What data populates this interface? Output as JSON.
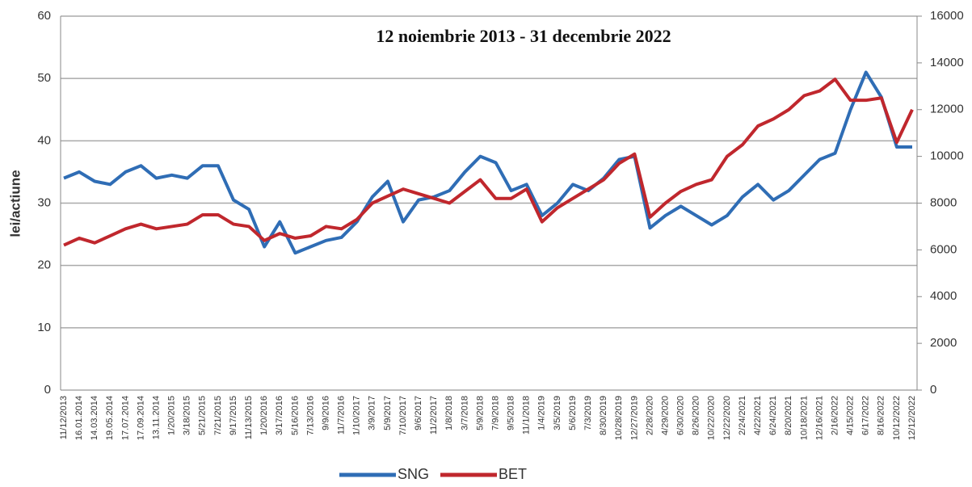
{
  "chart_data": {
    "type": "line",
    "title": "12 noiembrie 2013 - 31 decembrie 2022",
    "y_label": "lei/actiune",
    "categories": [
      "11/12/2013",
      "16.01.2014",
      "14.03.2014",
      "19.05.2014",
      "17.07.2014",
      "17.09.2014",
      "13.11.2014",
      "1/20/2015",
      "3/18/2015",
      "5/21/2015",
      "7/21/2015",
      "9/17/2015",
      "11/13/2015",
      "1/20/2016",
      "3/17/2016",
      "5/16/2016",
      "7/13/2016",
      "9/9/2016",
      "11/7/2016",
      "1/10/2017",
      "3/9/2017",
      "5/9/2017",
      "7/10/2017",
      "9/6/2017",
      "11/2/2017",
      "1/8/2018",
      "3/7/2018",
      "5/9/2018",
      "7/9/2018",
      "9/5/2018",
      "11/1/2018",
      "1/4/2019",
      "3/5/2019",
      "5/6/2019",
      "7/3/2019",
      "8/30/2019",
      "10/28/2019",
      "12/27/2019",
      "2/28/2020",
      "4/29/2020",
      "6/30/2020",
      "8/26/2020",
      "10/22/2020",
      "12/22/2020",
      "2/24/2021",
      "4/22/2021",
      "6/24/2021",
      "8/20/2021",
      "10/18/2021",
      "12/16/2021",
      "2/16/2022",
      "4/15/2022",
      "6/17/2022",
      "8/16/2022",
      "10/12/2022",
      "12/12/2022"
    ],
    "series": [
      {
        "name": "SNG",
        "color": "#2f6db5",
        "values": [
          34,
          35,
          33.5,
          33,
          35,
          36,
          34,
          34.5,
          34,
          36,
          36,
          30.5,
          29,
          23,
          27,
          22,
          23,
          24,
          24.5,
          27,
          31,
          33.5,
          27,
          30.5,
          31,
          32,
          35,
          37.5,
          36.5,
          32,
          33,
          28,
          30,
          33,
          32,
          34,
          37,
          37.5,
          26,
          28,
          29.5,
          28,
          26.5,
          28,
          31,
          33,
          30.5,
          32,
          34.5,
          37,
          38,
          45,
          51,
          47,
          39,
          39
        ]
      },
      {
        "name": "BET",
        "color": "#c0272d",
        "axis": "y2",
        "values": [
          6200,
          6500,
          6300,
          6600,
          6900,
          7100,
          6900,
          7000,
          7100,
          7500,
          7500,
          7100,
          7000,
          6400,
          6700,
          6500,
          6600,
          7000,
          6900,
          7300,
          8000,
          8300,
          8600,
          8400,
          8200,
          8000,
          8500,
          9000,
          8200,
          8200,
          8600,
          7200,
          7800,
          8200,
          8600,
          9000,
          9700,
          10100,
          7400,
          8000,
          8500,
          8800,
          9000,
          10000,
          10500,
          11300,
          11600,
          12000,
          12600,
          12800,
          13300,
          12400,
          12400,
          12500,
          10600,
          12000
        ]
      }
    ],
    "ylim": [
      0,
      60
    ],
    "yticks": [
      0,
      10,
      20,
      30,
      40,
      50,
      60
    ],
    "y2lim": [
      0,
      16000
    ],
    "y2ticks": [
      0,
      2000,
      4000,
      6000,
      8000,
      10000,
      12000,
      14000,
      16000
    ],
    "grid": true,
    "legend": "bottom"
  }
}
